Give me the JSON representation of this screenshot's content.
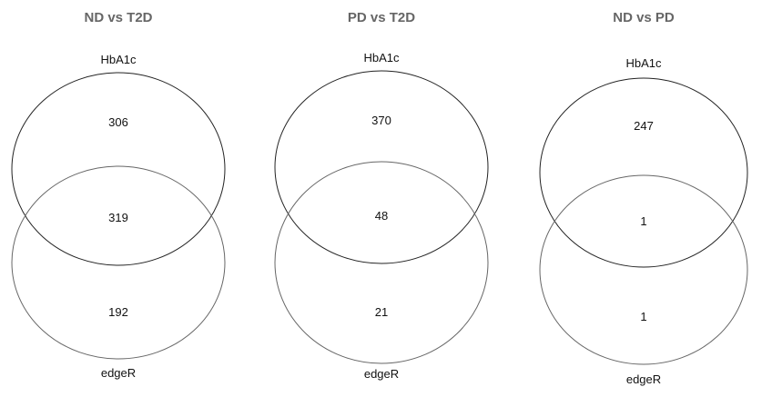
{
  "panels": [
    {
      "title": "ND vs T2D",
      "set_top": "HbA1c",
      "set_bottom": "edgeR",
      "only_top": "306",
      "overlap": "319",
      "only_bottom": "192"
    },
    {
      "title": "PD vs T2D",
      "set_top": "HbA1c",
      "set_bottom": "edgeR",
      "only_top": "370",
      "overlap": "48",
      "only_bottom": "21"
    },
    {
      "title": "ND vs PD",
      "set_top": "HbA1c",
      "set_bottom": "edgeR",
      "only_top": "247",
      "overlap": "1",
      "only_bottom": "1"
    }
  ],
  "colors": {
    "title": "#666666",
    "top_circle": "#222222",
    "bottom_circle": "#666666"
  }
}
